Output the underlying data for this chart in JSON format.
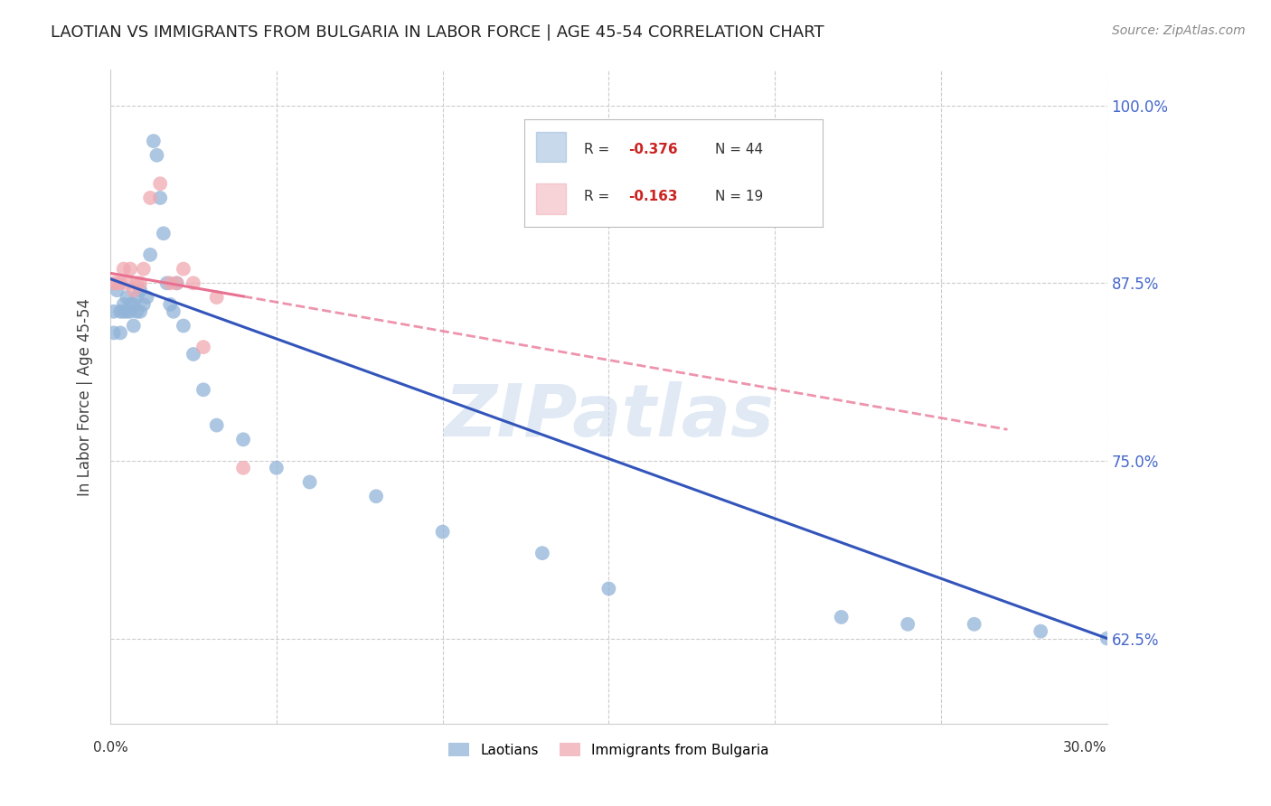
{
  "title": "LAOTIAN VS IMMIGRANTS FROM BULGARIA IN LABOR FORCE | AGE 45-54 CORRELATION CHART",
  "source": "Source: ZipAtlas.com",
  "ylabel": "In Labor Force | Age 45-54",
  "ytick_labels": [
    "100.0%",
    "87.5%",
    "75.0%",
    "62.5%"
  ],
  "ytick_values": [
    1.0,
    0.875,
    0.75,
    0.625
  ],
  "xlim": [
    0.0,
    0.3
  ],
  "ylim": [
    0.565,
    1.025
  ],
  "blue_color": "#92B4D8",
  "pink_color": "#F0A8B0",
  "line_blue": "#3355BB",
  "line_pink": "#E87090",
  "watermark": "ZIPatlas",
  "laotian_x": [
    0.001,
    0.001,
    0.002,
    0.003,
    0.003,
    0.004,
    0.004,
    0.005,
    0.005,
    0.006,
    0.006,
    0.007,
    0.007,
    0.008,
    0.008,
    0.009,
    0.009,
    0.01,
    0.011,
    0.012,
    0.013,
    0.014,
    0.015,
    0.016,
    0.017,
    0.018,
    0.019,
    0.02,
    0.022,
    0.025,
    0.028,
    0.032,
    0.04,
    0.05,
    0.06,
    0.08,
    0.1,
    0.13,
    0.15,
    0.22,
    0.24,
    0.26,
    0.28,
    0.3
  ],
  "laotian_y": [
    0.855,
    0.84,
    0.87,
    0.855,
    0.84,
    0.86,
    0.855,
    0.865,
    0.855,
    0.86,
    0.855,
    0.86,
    0.845,
    0.865,
    0.855,
    0.87,
    0.855,
    0.86,
    0.865,
    0.895,
    0.975,
    0.965,
    0.935,
    0.91,
    0.875,
    0.86,
    0.855,
    0.875,
    0.845,
    0.825,
    0.8,
    0.775,
    0.765,
    0.745,
    0.735,
    0.725,
    0.7,
    0.685,
    0.66,
    0.64,
    0.635,
    0.635,
    0.63,
    0.625
  ],
  "bulgaria_x": [
    0.001,
    0.002,
    0.003,
    0.004,
    0.005,
    0.006,
    0.007,
    0.008,
    0.009,
    0.01,
    0.012,
    0.015,
    0.018,
    0.02,
    0.022,
    0.025,
    0.028,
    0.032,
    0.04
  ],
  "bulgaria_y": [
    0.875,
    0.875,
    0.875,
    0.885,
    0.875,
    0.885,
    0.87,
    0.875,
    0.875,
    0.885,
    0.935,
    0.945,
    0.875,
    0.875,
    0.885,
    0.875,
    0.83,
    0.865,
    0.745
  ],
  "blue_line_x0": 0.0,
  "blue_line_x1": 0.3,
  "blue_line_y0": 0.878,
  "blue_line_y1": 0.625,
  "pink_line_x0": 0.0,
  "pink_line_x1": 0.27,
  "pink_line_y0": 0.882,
  "pink_line_y1": 0.772
}
